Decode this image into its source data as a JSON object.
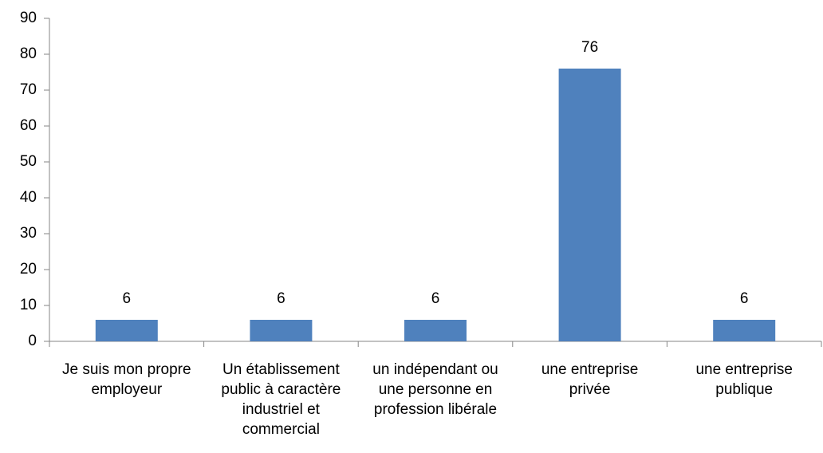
{
  "chart_data": {
    "type": "bar",
    "categories": [
      "Je suis mon propre employeur",
      "Un établissement public à caractère industriel et commercial",
      "un indépendant ou une personne en profession libérale",
      "une entreprise privée",
      "une entreprise publique"
    ],
    "values": [
      6,
      6,
      6,
      76,
      6
    ],
    "color": "#4f81bd",
    "ylim": [
      0,
      90
    ],
    "yticks": [
      0,
      10,
      20,
      30,
      40,
      50,
      60,
      70,
      80,
      90
    ],
    "grid": false,
    "data_labels": true
  }
}
